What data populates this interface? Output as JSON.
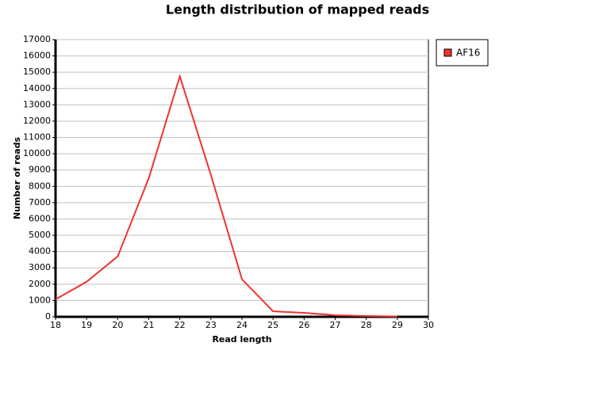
{
  "chart_data": {
    "type": "line",
    "title": "Length distribution of mapped reads",
    "x_label": "Read length",
    "y_label": "Number of reads",
    "x": [
      18,
      19,
      20,
      21,
      22,
      23,
      24,
      25,
      26,
      27,
      28,
      29
    ],
    "series": [
      {
        "name": "AF16",
        "color": "#ee3333",
        "values": [
          1070,
          2150,
          3700,
          8500,
          14750,
          8700,
          2300,
          340,
          240,
          100,
          50,
          20
        ]
      }
    ],
    "xlim": [
      18,
      30
    ],
    "xticks": [
      18,
      19,
      20,
      21,
      22,
      23,
      24,
      25,
      26,
      27,
      28,
      29,
      30
    ],
    "ylim": [
      0,
      17000
    ],
    "yticks": [
      0,
      1000,
      2000,
      3000,
      4000,
      5000,
      6000,
      7000,
      8000,
      9000,
      10000,
      11000,
      12000,
      13000,
      14000,
      15000,
      16000,
      17000
    ],
    "grid": true,
    "legend": "right"
  }
}
